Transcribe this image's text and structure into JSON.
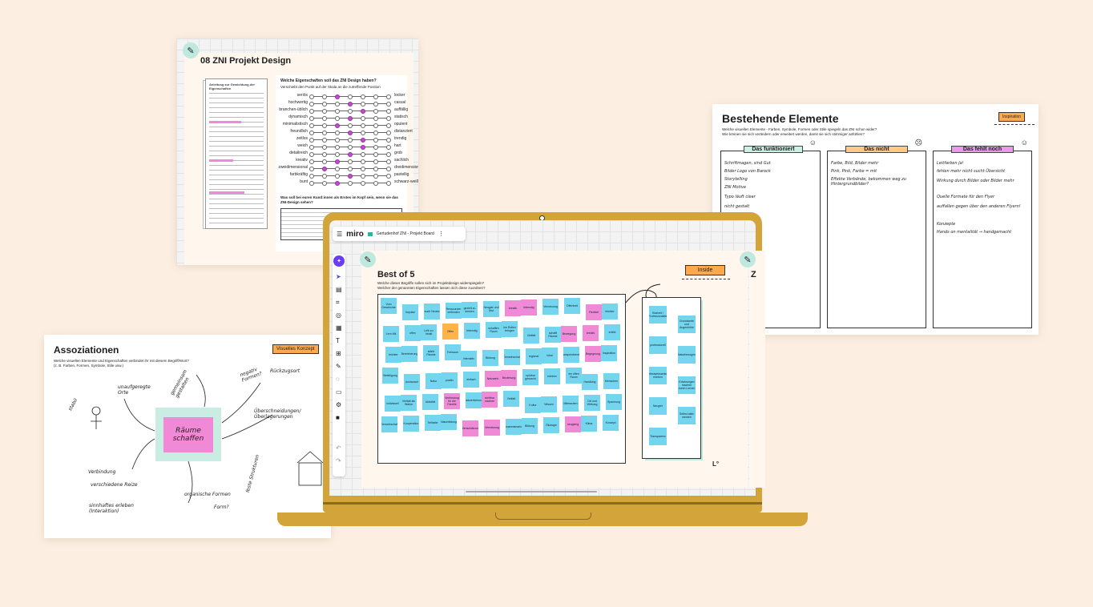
{
  "colors": {
    "background": "#fcefe2",
    "laptop": "#d2a43a",
    "teal": "#bfe8de",
    "cyan_sticky": "#74d6ee",
    "pink_sticky": "#f08ad6",
    "orange_tag": "#ffa94d"
  },
  "design_card": {
    "title": "08 ZNI Projekt Design",
    "doc_heading": "Anleitung zur Gewichtung der Eigenschaften",
    "question": "Welche Eigenschaften soll das ZNI Design haben?",
    "instruction": "Verschiebt den Punkt auf der Skala an die zutreffende Position",
    "scale": [
      {
        "left": "seriös",
        "right": "locker",
        "pos": 2
      },
      {
        "left": "hochwertig",
        "right": "casual",
        "pos": 3
      },
      {
        "left": "branchen-üblich",
        "right": "auffällig",
        "pos": 4
      },
      {
        "left": "dynamisch",
        "right": "statisch",
        "pos": 3
      },
      {
        "left": "minimalistisch",
        "right": "opulent",
        "pos": 2
      },
      {
        "left": "freundlich",
        "right": "distanziert",
        "pos": 3
      },
      {
        "left": "zeitlos",
        "right": "trendig",
        "pos": 4
      },
      {
        "left": "weich",
        "right": "hart",
        "pos": 4
      },
      {
        "left": "detailreich",
        "right": "grob",
        "pos": 3
      },
      {
        "left": "kreativ",
        "right": "sachlich",
        "pos": 2
      },
      {
        "left": "zweidimensional",
        "right": "dreidimensional",
        "pos": 1
      },
      {
        "left": "farbkräftig",
        "right": "pastellig",
        "pos": 3
      },
      {
        "left": "bunt",
        "right": "schwarz-weiß",
        "pos": 2
      }
    ],
    "followup": "Was soll bei euren Kund:innen als Erstes im Kopf sein, wenn sie das ZNI-Design sehen?"
  },
  "elements_card": {
    "title": "Bestehende Elemente",
    "tag": "Inspiration",
    "subtitle_1": "Welche visuellen Elemente - Farben, Symbole, Formen oder Stile spiegeln das ZNI schon wider?",
    "subtitle_2": "Wie können sie sich verändern oder erweitert werden, damit sie sich stimmiger anfühlen?",
    "columns": [
      {
        "label": "Das funktioniert",
        "color": "#cdf0e4",
        "notes": [
          "Schriftmagen, sind Gut",
          "Bilder Logo von Barock",
          "Storytelling",
          "ZNI Motive",
          "Typo läuft clear",
          "nicht gestalt"
        ]
      },
      {
        "label": "Das nicht",
        "color": "#ffc98a",
        "notes": [
          "Farbe, Bild, Bilder mehr",
          "Pink, Pink, Farbe = mit",
          "Effekte Verbände, bekommen weg zu Hintergrundbilder?"
        ]
      },
      {
        "label": "Das fehlt noch",
        "color": "#e59ee6",
        "notes": [
          "Leitfarben ja!",
          "fehlen mehr nicht sucht Übersicht",
          "Wirkung durch Bilder oder Bilder mehr",
          "Quelle Formate für den Flyer",
          "auffallen gegen über den anderen Flyern!",
          "Konzepte",
          "Hands on mentalität → handgemacht"
        ]
      }
    ]
  },
  "assoc_card": {
    "title": "Assoziationen",
    "tag": "Visuelles Konzept",
    "subtitle_1": "Welche visuellen Elemente und Eigenschaften verbindet ihr mit diesem Begriff/Wort?",
    "subtitle_2": "(z. B. Farben, Formen, Symbole, Stile usw.)",
    "center_note": "Räume schaffen",
    "scribbles": [
      "stabil",
      "unaufgeregte Orte",
      "Verbindung",
      "verschiedene Reize",
      "sinnhaftes erleben (Interaktion)",
      "organische Formen",
      "Form?",
      "feste Strukturen",
      "Überschneidungen/Überlagerungen",
      "negativ Formen?",
      "gemeinsam gestalten",
      "Rückzugsort"
    ]
  },
  "miro": {
    "logo": "miro",
    "board_name": "Gertudenhof ZNI - Projekt Board",
    "menu_icon": "hamburger-icon",
    "more_icon": "more-vertical-icon",
    "frame_title": "Best of 5",
    "frame_sub_1": "Welche dieser Begriffe sollen sich im Projektdesign widerspiegeln?",
    "frame_sub_2": "Welcher der genannten Eigenschaften lassen sich diese zuordnen?",
    "inside_tag": "Inside",
    "next_frame_initial": "Z",
    "toolbar": [
      "magic-icon",
      "cursor-icon",
      "sticky-icon",
      "frame-icon",
      "shape-icon",
      "card-icon",
      "text-icon",
      "template-icon",
      "pen-icon",
      "comment-icon",
      "chat-icon",
      "apps-icon",
      "upload-icon"
    ],
    "stickies": [
      {
        "t": "Vom Geschichte",
        "c": "c"
      },
      {
        "t": "Impulse",
        "c": "c"
      },
      {
        "t": "auch Neues",
        "c": "c"
      },
      {
        "t": "Ressourcen verbinden",
        "c": "c"
      },
      {
        "t": "gezielt zu denken",
        "c": "c"
      },
      {
        "t": "Neugier und Mut",
        "c": "c"
      },
      {
        "t": "kreativ",
        "c": "p"
      },
      {
        "t": "lebendig",
        "c": "p"
      },
      {
        "t": "Vernetzung",
        "c": "c"
      },
      {
        "t": "Offenheit",
        "c": "c"
      },
      {
        "t": "Flexibel",
        "c": "p"
      },
      {
        "t": "leichter",
        "c": "c"
      },
      {
        "t": "Lern Mit",
        "c": "c"
      },
      {
        "t": "offen",
        "c": "c"
      },
      {
        "t": "Leib zu Inhalt",
        "c": "c"
      },
      {
        "t": "Offen",
        "c": "o"
      },
      {
        "t": "lebendig",
        "c": "c"
      },
      {
        "t": "schaffen Raum",
        "c": "c"
      },
      {
        "t": "Ins Rollen bringen",
        "c": "c"
      },
      {
        "t": "Vielfalt",
        "c": "c"
      },
      {
        "t": "schafft Räume",
        "c": "c"
      },
      {
        "t": "Bewegung",
        "c": "p"
      },
      {
        "t": "kreativ",
        "c": "p"
      },
      {
        "t": "erlebt",
        "c": "c"
      },
      {
        "t": "leichter",
        "c": "c"
      },
      {
        "t": "Bereicherung",
        "c": "c"
      },
      {
        "t": "stärkt Räume",
        "c": "c"
      },
      {
        "t": "Freiraum",
        "c": "c"
      },
      {
        "t": "interaktiv",
        "c": "c"
      },
      {
        "t": "Bildung",
        "c": "c"
      },
      {
        "t": "Gemeinschaft",
        "c": "c"
      },
      {
        "t": "regional",
        "c": "c"
      },
      {
        "t": "lokal",
        "c": "c"
      },
      {
        "t": "ansprechend",
        "c": "c"
      },
      {
        "t": "Begegnung",
        "c": "p"
      },
      {
        "t": "Inspiration",
        "c": "c"
      },
      {
        "t": "Beteiligung",
        "c": "c"
      },
      {
        "t": "Austausch",
        "c": "c"
      },
      {
        "t": "Natur",
        "c": "c"
      },
      {
        "t": "positiv",
        "c": "c"
      },
      {
        "t": "einfach",
        "c": "c"
      },
      {
        "t": "Netzwerk",
        "c": "p"
      },
      {
        "t": "Beziehung",
        "c": "p"
      },
      {
        "t": "spürbar gemacht",
        "c": "c"
      },
      {
        "t": "erleben",
        "c": "c"
      },
      {
        "t": "ein offen Raum",
        "c": "c"
      },
      {
        "t": "Handlung",
        "c": "c"
      },
      {
        "t": "Menschen",
        "c": "c"
      },
      {
        "t": "individuell",
        "c": "c"
      },
      {
        "t": "Vielfalt als Stärke",
        "c": "c"
      },
      {
        "t": "Aktivität",
        "c": "c"
      },
      {
        "t": "Verbindung für die Familie",
        "c": "p"
      },
      {
        "t": "Naturerfahrung",
        "c": "c"
      },
      {
        "t": "sichtbar machen",
        "c": "p"
      },
      {
        "t": "Vielfalt",
        "c": "c"
      },
      {
        "t": "Kultur",
        "c": "c"
      },
      {
        "t": "Wissen",
        "c": "c"
      },
      {
        "t": "Mitmachen",
        "c": "c"
      },
      {
        "t": "Ort und Wirkung",
        "c": "c"
      },
      {
        "t": "Spannung",
        "c": "c"
      },
      {
        "t": "Gemeinschaft",
        "c": "c"
      },
      {
        "t": "Kooperation",
        "c": "c"
      },
      {
        "t": "Teilhabe",
        "c": "c"
      },
      {
        "t": "Naturbildung",
        "c": "c"
      },
      {
        "t": "Wertschätzung",
        "c": "p"
      },
      {
        "t": "Vernetzung",
        "c": "p"
      },
      {
        "t": "Zusammenarbeit",
        "c": "c"
      },
      {
        "t": "Bildung",
        "c": "c"
      },
      {
        "t": "Ökologie",
        "c": "c"
      },
      {
        "t": "neugierig",
        "c": "p"
      },
      {
        "t": "Klima",
        "c": "c"
      },
      {
        "t": "Konzept",
        "c": "c"
      }
    ],
    "inside_stickies": [
      {
        "t": "Klarheit / Professionalität",
        "c": "c"
      },
      {
        "t": "Grundwerte und Augenhöhe",
        "c": "c"
      },
      {
        "t": "professionell",
        "c": "c"
      },
      {
        "t": "Naturbezogen",
        "c": "c"
      },
      {
        "t": "Selbstwirksamkeit erleben",
        "c": "c"
      },
      {
        "t": "Erfahrungen machen durch Lernen",
        "c": "c"
      },
      {
        "t": "Neugier",
        "c": "c"
      },
      {
        "t": "Selbst aktiv werden",
        "c": "c"
      },
      {
        "t": "Transparenz",
        "c": "c"
      }
    ]
  }
}
